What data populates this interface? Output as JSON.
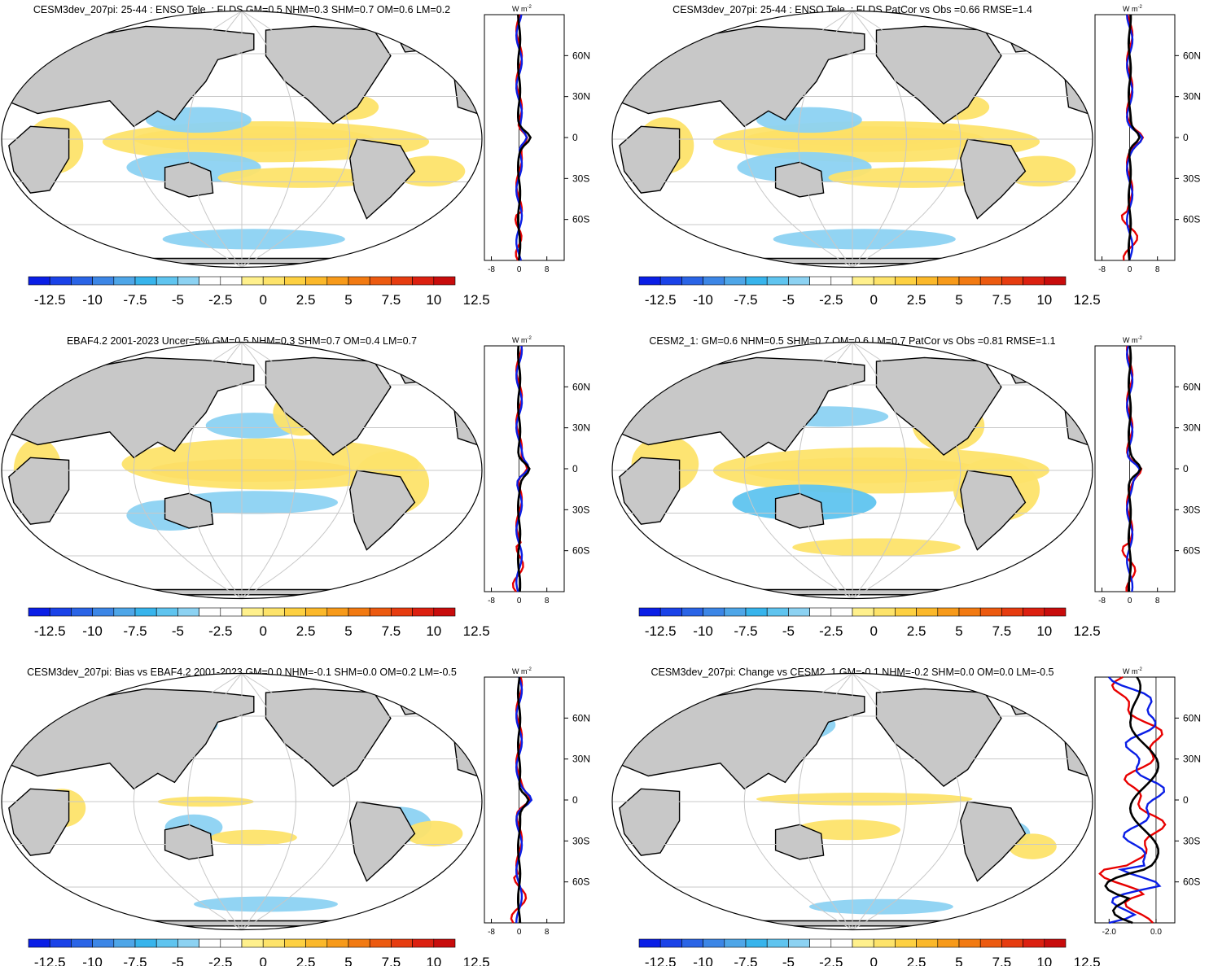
{
  "colorbar": {
    "labels": [
      "-12.5",
      "-10",
      "-7.5",
      "-5",
      "-2.5",
      "0",
      "2.5",
      "5",
      "7.5",
      "10",
      "12.5"
    ],
    "colors": [
      "#0a1ee6",
      "#1a42e8",
      "#2a64e6",
      "#3c86e6",
      "#4ea6e8",
      "#37b4ec",
      "#5fc4ef",
      "#8cd2f2",
      "#ffffff",
      "#ffffff",
      "#fff08c",
      "#fde36a",
      "#fdd041",
      "#fbb82a",
      "#f79a1a",
      "#f27a12",
      "#ec5a10",
      "#e63c10",
      "#dc2010",
      "#c80c0c"
    ]
  },
  "profile": {
    "unit": "W m",
    "unit_sup": "-2",
    "lat_labels": [
      "60N",
      "30N",
      "0",
      "30S",
      "60S"
    ],
    "x_labels_std": [
      "-8",
      "0",
      "8"
    ],
    "x_labels_change": [
      "-2.0",
      "0.0"
    ]
  },
  "panels": [
    {
      "title": "CESM3dev_207pi: 25-44 : ENSO Tele. : FLDS GM=0.5 NHM=0.3 SHM=0.7 OM=0.6 LM=0.2",
      "pattern": "model"
    },
    {
      "title": "CESM3dev_207pi: 25-44 : ENSO Tele. : FLDS PatCor vs Obs =0.66 RMSE=1.4",
      "pattern": "model"
    },
    {
      "title": "EBAF4.2 2001-2023 Uncer=5% GM=0.5 NHM=0.3 SHM=0.7 OM=0.4 LM=0.7",
      "pattern": "obs"
    },
    {
      "title": "CESM2_1: GM=0.6 NHM=0.5 SHM=0.7 OM=0.6 LM=0.7 PatCor vs Obs =0.81 RMSE=1.1",
      "pattern": "cesm2"
    },
    {
      "title": "CESM3dev_207pi: Bias vs EBAF4.2 2001-2023 GM=0.0 NHM=-0.1 SHM=0.0 OM=0.2 LM=-0.5",
      "pattern": "bias"
    },
    {
      "title": "CESM3dev_207pi: Change vs CESM2_1 GM=-0.1 NHM=-0.2 SHM=0.0 OM=0.0 LM=-0.5",
      "pattern": "change"
    }
  ]
}
